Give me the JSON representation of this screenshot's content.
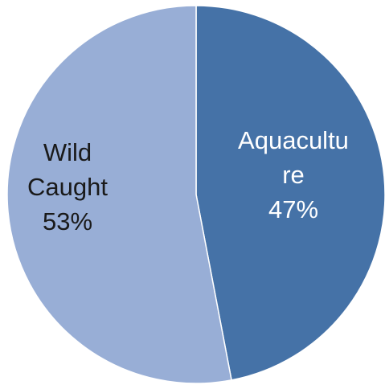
{
  "chart_data": {
    "type": "pie",
    "title": "",
    "slices": [
      {
        "name": "Aquaculture",
        "display_lines": [
          "Aquacultu",
          "re"
        ],
        "value": 47,
        "value_label": "47%",
        "color": "#4572a7"
      },
      {
        "name": "Wild Caught",
        "display_lines": [
          "Wild",
          "Caught"
        ],
        "value": 53,
        "value_label": "53%",
        "color": "#98aed6"
      }
    ],
    "start_angle_deg": 0,
    "direction": "clockwise",
    "legend": "none"
  }
}
